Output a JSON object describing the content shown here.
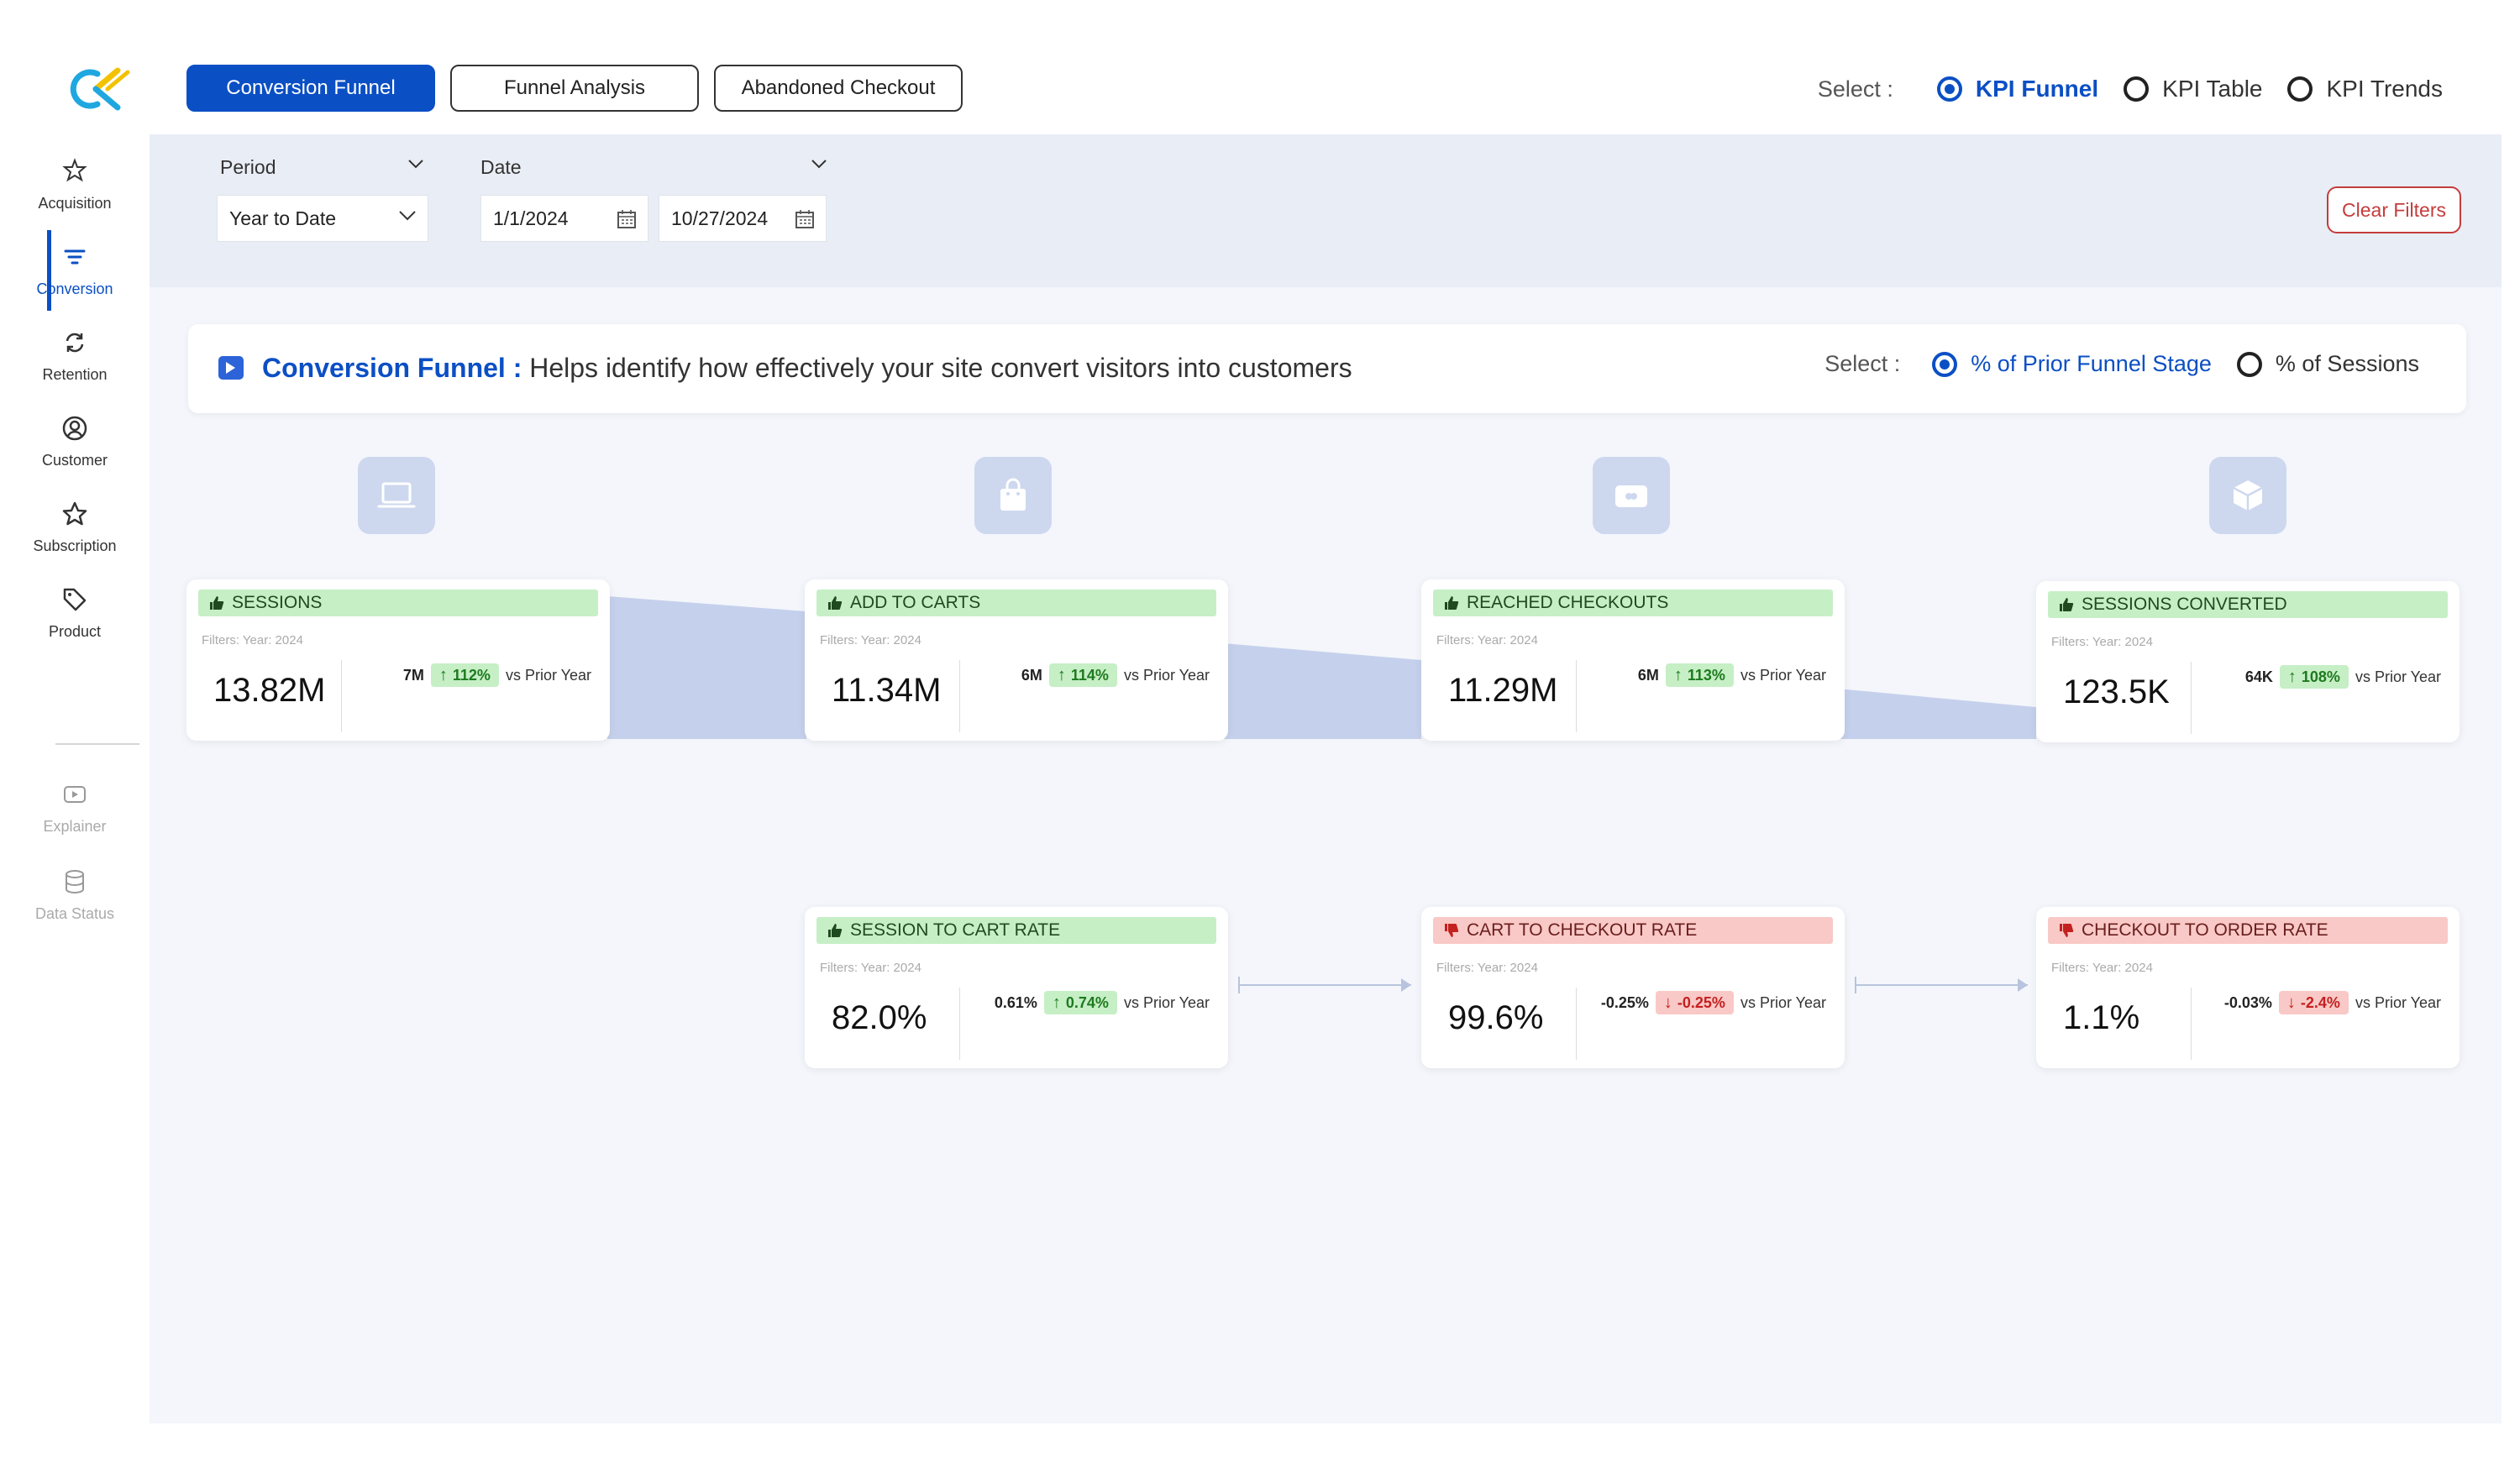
{
  "sidebar": {
    "items": [
      {
        "label": "Acquisition",
        "icon": "acquisition-icon"
      },
      {
        "label": "Conversion",
        "icon": "filter-icon"
      },
      {
        "label": "Retention",
        "icon": "refresh-icon"
      },
      {
        "label": "Customer",
        "icon": "user-circle-icon"
      },
      {
        "label": "Subscription",
        "icon": "star-icon"
      },
      {
        "label": "Product",
        "icon": "tag-icon"
      }
    ],
    "secondary": [
      {
        "label": "Explainer",
        "icon": "video-icon"
      },
      {
        "label": "Data Status",
        "icon": "database-icon"
      }
    ]
  },
  "tabs": {
    "conversion_funnel": "Conversion Funnel",
    "funnel_analysis": "Funnel Analysis",
    "abandoned_checkout": "Abandoned Checkout"
  },
  "view_select": {
    "label": "Select :",
    "options": [
      "KPI Funnel",
      "KPI Table",
      "KPI Trends"
    ],
    "selected": "KPI Funnel"
  },
  "filters": {
    "period_label": "Period",
    "period_value": "Year to Date",
    "date_label": "Date",
    "date_start": "1/1/2024",
    "date_end": "10/27/2024",
    "clear_label": "Clear Filters"
  },
  "header": {
    "title": "Conversion Funnel :",
    "subtitle": "Helps identify how effectively your site convert visitors into customers",
    "select_label": "Select :",
    "options": [
      "% of Prior Funnel Stage",
      "% of Sessions"
    ],
    "selected": "% of Prior Funnel Stage"
  },
  "stages": [
    {
      "icon": "laptop-icon",
      "title": "SESSIONS",
      "filters": "Filters:  Year: 2024",
      "value": "13.82M",
      "abs": "7M",
      "change": "112%",
      "trend": "up",
      "vs": "vs Prior Year",
      "status": "good"
    },
    {
      "icon": "shopping-bag-icon",
      "title": "ADD TO CARTS",
      "filters": "Filters:  Year: 2024",
      "value": "11.34M",
      "abs": "6M",
      "change": "114%",
      "trend": "up",
      "vs": "vs Prior Year",
      "status": "good"
    },
    {
      "icon": "credit-card-icon",
      "title": "REACHED CHECKOUTS",
      "filters": "Filters:  Year: 2024",
      "value": "11.29M",
      "abs": "6M",
      "change": "113%",
      "trend": "up",
      "vs": "vs Prior Year",
      "status": "good"
    },
    {
      "icon": "package-icon",
      "title": "SESSIONS CONVERTED",
      "filters": "Filters:  Year: 2024",
      "value": "123.5K",
      "abs": "64K",
      "change": "108%",
      "trend": "up",
      "vs": "vs Prior Year",
      "status": "good"
    }
  ],
  "rates": [
    {
      "title": "SESSION TO CART RATE",
      "filters": "Filters:  Year: 2024",
      "value": "82.0%",
      "abs": "0.61%",
      "change": "0.74%",
      "trend": "up",
      "vs": "vs Prior Year",
      "status": "good"
    },
    {
      "title": "CART TO CHECKOUT RATE",
      "filters": "Filters:  Year: 2024",
      "value": "99.6%",
      "abs": "-0.25%",
      "change": "-0.25%",
      "trend": "down",
      "vs": "vs Prior Year",
      "status": "bad"
    },
    {
      "title": "CHECKOUT TO ORDER RATE",
      "filters": "Filters:  Year: 2024",
      "value": "1.1%",
      "abs": "-0.03%",
      "change": "-2.4%",
      "trend": "down",
      "vs": "vs Prior Year",
      "status": "bad"
    }
  ],
  "colors": {
    "accent": "#0b4fc4",
    "good_bg": "#c6efc6",
    "bad_bg": "#f8c9c6",
    "funnel": "#c5d1ec"
  }
}
